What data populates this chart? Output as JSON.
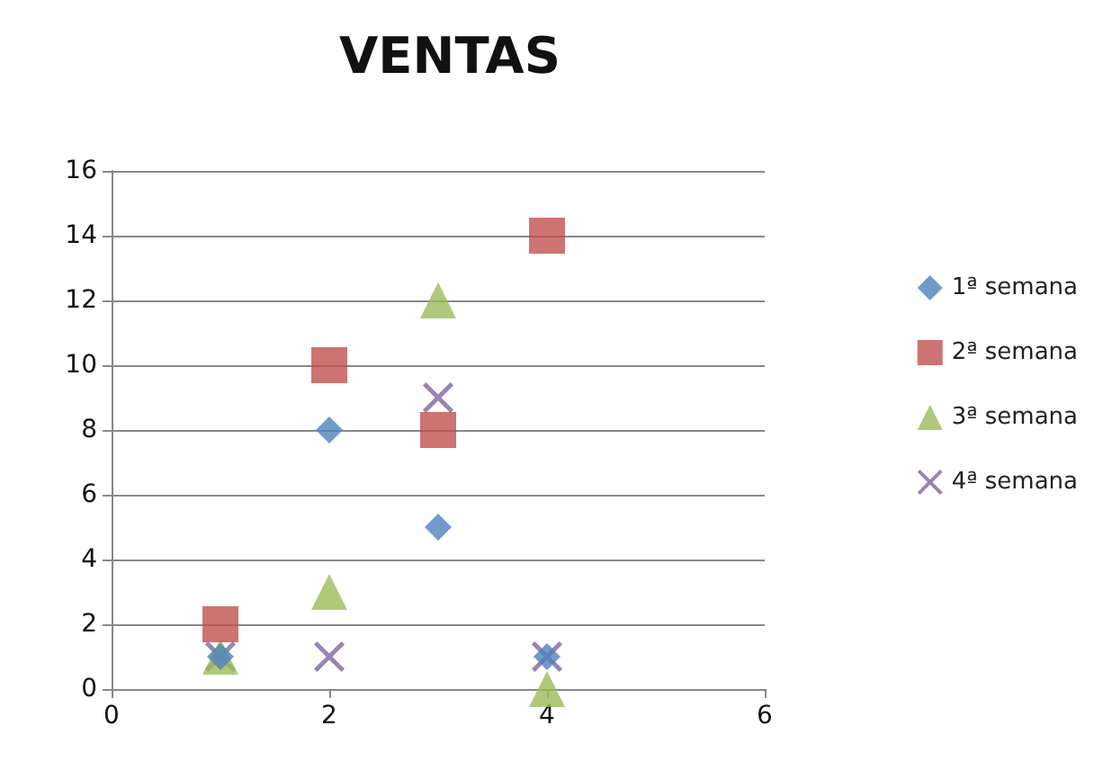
{
  "chart_data": {
    "type": "scatter",
    "title": "VENTAS",
    "x": [
      1,
      2,
      3,
      4
    ],
    "series": [
      {
        "name": "1ª semana",
        "color": "#4f81bd",
        "marker": "diamond",
        "values": [
          1,
          8,
          5,
          1
        ]
      },
      {
        "name": "2ª semana",
        "color": "#c0504d",
        "marker": "square",
        "values": [
          2,
          10,
          8,
          14
        ]
      },
      {
        "name": "3ª semana",
        "color": "#9bbb59",
        "marker": "triangle",
        "values": [
          1,
          3,
          12,
          0
        ]
      },
      {
        "name": "4ª semana",
        "color": "#8064a2",
        "marker": "cross",
        "values": [
          1,
          1,
          9,
          1
        ]
      }
    ],
    "xlim": [
      0,
      6
    ],
    "xticks": [
      0,
      2,
      4,
      6
    ],
    "ylim": [
      0,
      16
    ],
    "yticks": [
      0,
      2,
      4,
      6,
      8,
      10,
      12,
      14,
      16
    ],
    "grid": "y",
    "legend": "right"
  }
}
